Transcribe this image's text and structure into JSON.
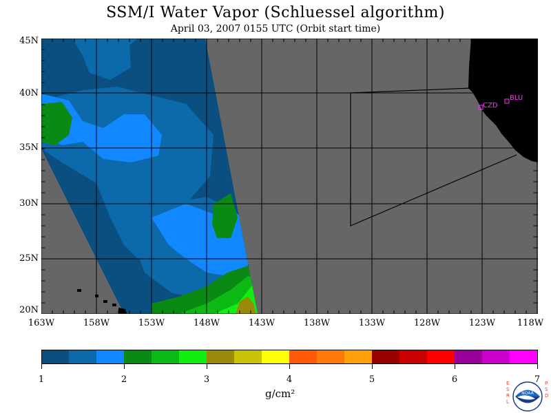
{
  "title": "SSM/I Water Vapor (Schluessel algorithm)",
  "subtitle": "April 03, 2007  0155 UTC  (Orbit start time)",
  "map": {
    "lat_labels": [
      "45N",
      "40N",
      "35N",
      "30N",
      "25N",
      "20N"
    ],
    "lon_labels": [
      "163W",
      "158W",
      "153W",
      "148W",
      "143W",
      "138W",
      "133W",
      "128W",
      "123W",
      "118W"
    ],
    "stations": [
      {
        "id": "CZD",
        "label": "CZD",
        "lat": 38.6,
        "lon": -123.2
      },
      {
        "id": "BLU",
        "label": "BLU",
        "lat": 39.3,
        "lon": -120.8
      }
    ],
    "colors": {
      "background_no_data": "#666666",
      "land": "#000000",
      "station_marker": "#ff33ff"
    }
  },
  "colorbar": {
    "tick_labels": [
      "1",
      "2",
      "3",
      "4",
      "5",
      "6",
      "7"
    ],
    "units": "g/cm²",
    "colors": [
      "#0a4f7f",
      "#0d6aaa",
      "#1188ff",
      "#0a8a14",
      "#0bb814",
      "#11ee11",
      "#9a8a0a",
      "#c9c30a",
      "#ffff0a",
      "#ff5a0a",
      "#ff7a0a",
      "#ffa00a",
      "#990000",
      "#c80000",
      "#ff0000",
      "#990099",
      "#cc00cc",
      "#ff00ff"
    ]
  },
  "logo": {
    "left_text": "ESRL",
    "right_text": "PSD",
    "inner_text": "NOAA"
  }
}
